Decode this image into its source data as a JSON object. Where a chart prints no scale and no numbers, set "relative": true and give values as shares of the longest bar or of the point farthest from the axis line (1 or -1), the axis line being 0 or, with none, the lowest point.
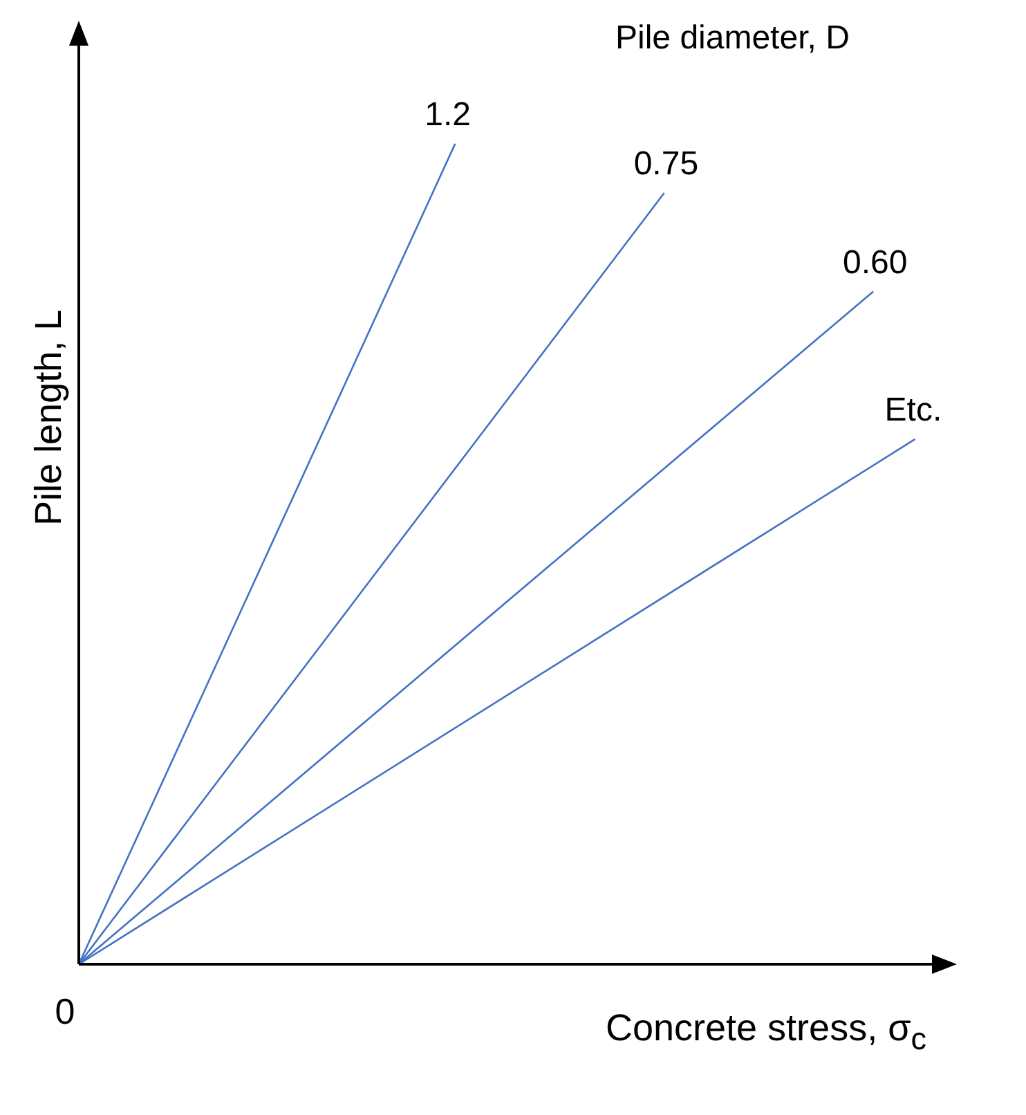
{
  "chart_data": {
    "type": "line",
    "relative": true,
    "xlabel": "Concrete stress, σ$_{c}$",
    "ylabel": "Pile length, L",
    "legend_title": "Pile diameter, D",
    "annotations": [
      "0"
    ],
    "categories": [
      null,
      null,
      null,
      null,
      null,
      null,
      null,
      null,
      null,
      null,
      null,
      null,
      null,
      null,
      null,
      null,
      null,
      null,
      null,
      null,
      null,
      null
    ],
    "series": [
      {
        "name": "1.2",
        "color": "#4472c4",
        "values": [
          0,
          null,
          null,
          null,
          null,
          null,
          null,
          null,
          null,
          1,
          null,
          null,
          null,
          null,
          null,
          null,
          null,
          null,
          null,
          null,
          null,
          null
        ]
      },
      {
        "name": "0.75",
        "color": "#4472c4",
        "values": [
          0,
          null,
          null,
          null,
          null,
          null,
          null,
          null,
          null,
          null,
          null,
          null,
          null,
          null,
          0.94,
          null,
          null,
          null,
          null,
          null,
          null,
          null
        ]
      },
      {
        "name": "0.60",
        "color": "#4472c4",
        "values": [
          0,
          null,
          null,
          null,
          null,
          null,
          null,
          null,
          null,
          null,
          null,
          null,
          null,
          null,
          null,
          null,
          null,
          null,
          null,
          0.82,
          null,
          null
        ]
      },
      {
        "name": "Etc.",
        "color": "#4472c4",
        "values": [
          0,
          null,
          null,
          null,
          null,
          null,
          null,
          null,
          null,
          null,
          null,
          null,
          null,
          null,
          null,
          null,
          null,
          null,
          null,
          null,
          0.64,
          null
        ]
      }
    ]
  }
}
